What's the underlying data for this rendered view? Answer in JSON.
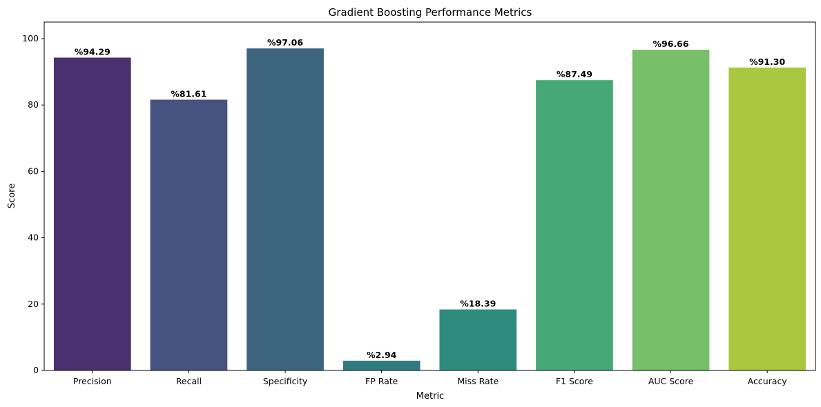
{
  "chart_data": {
    "type": "bar",
    "title": "Gradient Boosting Performance Metrics",
    "xlabel": "Metric",
    "ylabel": "Score",
    "ylim": [
      0,
      105
    ],
    "yticks": [
      0,
      20,
      40,
      60,
      80,
      100
    ],
    "categories": [
      "Precision",
      "Recall",
      "Specificity",
      "FP Rate",
      "Miss Rate",
      "F1 Score",
      "AUC Score",
      "Accuracy"
    ],
    "values": [
      94.29,
      81.61,
      97.06,
      2.94,
      18.39,
      87.49,
      96.66,
      91.3
    ],
    "data_labels": [
      "%94.29",
      "%81.61",
      "%97.06",
      "%2.94",
      "%18.39",
      "%87.49",
      "%96.66",
      "%91.30"
    ],
    "colors": [
      "#4a306e",
      "#46527f",
      "#3e6580",
      "#2e7a80",
      "#2d8c7e",
      "#45a876",
      "#77bf69",
      "#a9c83f"
    ],
    "grid": false,
    "legend": "none"
  }
}
